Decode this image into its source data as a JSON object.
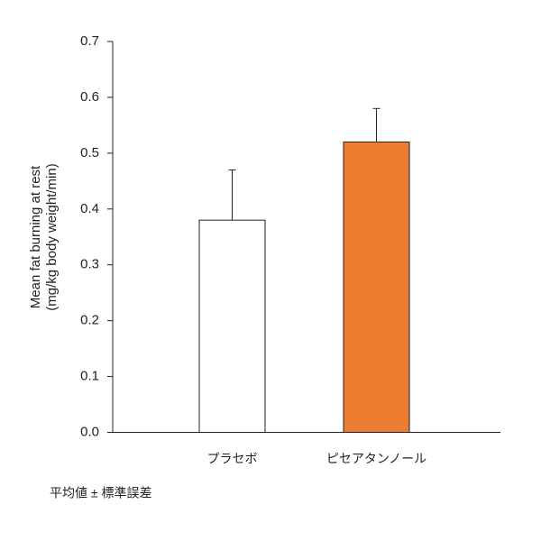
{
  "chart_data": {
    "type": "bar",
    "y_label": [
      "Mean fat burning at rest",
      "(mg/kg body weight/min)"
    ],
    "categories": [
      "プラセボ",
      "ピセアタンノール"
    ],
    "values": [
      0.38,
      0.52
    ],
    "errors": [
      0.09,
      0.06
    ],
    "colors": [
      "#ffffff",
      "#ed7d31"
    ],
    "ylim": [
      0,
      0.7
    ],
    "yticks": [
      {
        "value": 0,
        "label": "0.0"
      },
      0.1,
      0.2,
      0.3,
      0.4,
      0.5,
      0.6,
      0.7
    ],
    "note": "平均値 ± 標準誤差"
  }
}
